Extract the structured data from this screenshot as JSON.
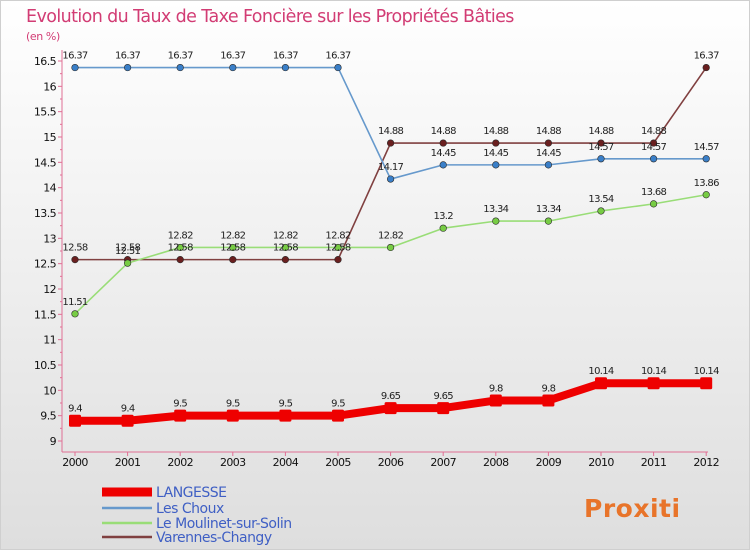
{
  "chart_data": {
    "type": "line",
    "title": "Evolution du Taux de Taxe Foncière sur les Propriétés Bâties",
    "unit_label": "(en %)",
    "brand": "Proxiti",
    "categories": [
      "2000",
      "2001",
      "2002",
      "2003",
      "2004",
      "2005",
      "2006",
      "2007",
      "2008",
      "2009",
      "2010",
      "2011",
      "2012"
    ],
    "ylim": [
      9,
      16.5
    ],
    "yticks": [
      9,
      9.5,
      10,
      10.5,
      11,
      11.5,
      12,
      12.5,
      13,
      13.5,
      14,
      14.5,
      15,
      15.5,
      16,
      16.5
    ],
    "ytick_labels": [
      "9",
      "9.5",
      "10",
      "10.5",
      "11",
      "11.5",
      "12",
      "12.5",
      "13",
      "13.5",
      "14",
      "14.5",
      "15",
      "15.5",
      "16",
      "16.5"
    ],
    "grid": false,
    "series": [
      {
        "name": "LANGESSE",
        "color": "#ee0000",
        "values": [
          9.4,
          9.4,
          9.5,
          9.5,
          9.5,
          9.5,
          9.65,
          9.65,
          9.8,
          9.8,
          10.14,
          10.14,
          10.14
        ],
        "labels": [
          "9.4",
          "9.4",
          "9.5",
          "9.5",
          "9.5",
          "9.5",
          "9.65",
          "9.65",
          "9.8",
          "9.8",
          "10.14",
          "10.14",
          "10.14"
        ]
      },
      {
        "name": "Les Choux",
        "color": "#6699cc",
        "marker_color": "#3a7fc8",
        "values": [
          16.37,
          16.37,
          16.37,
          16.37,
          16.37,
          16.37,
          14.17,
          14.45,
          14.45,
          14.45,
          14.57,
          14.57,
          14.57
        ],
        "labels": [
          "16.37",
          "16.37",
          "16.37",
          "16.37",
          "16.37",
          "16.37",
          "14.17",
          "14.45",
          "14.45",
          "14.45",
          "14.57",
          "14.57",
          "14.57"
        ]
      },
      {
        "name": "Le Moulinet-sur-Solin",
        "color": "#99dd77",
        "marker_color": "#77cc44",
        "values": [
          11.51,
          12.51,
          12.82,
          12.82,
          12.82,
          12.82,
          12.82,
          13.2,
          13.34,
          13.34,
          13.54,
          13.68,
          13.86
        ],
        "labels": [
          "11.51",
          "12.51",
          "12.82",
          "12.82",
          "12.82",
          "12.82",
          "12.82",
          "13.2",
          "13.34",
          "13.34",
          "13.54",
          "13.68",
          "13.86"
        ]
      },
      {
        "name": "Varennes-Changy",
        "color": "#804040",
        "marker_color": "#6a1f1f",
        "values": [
          12.58,
          12.58,
          12.58,
          12.58,
          12.58,
          12.58,
          14.88,
          14.88,
          14.88,
          14.88,
          14.88,
          14.88,
          16.37
        ],
        "labels": [
          "12.58",
          "12.58",
          "12.58",
          "12.58",
          "12.58",
          "12.58",
          "14.88",
          "14.88",
          "14.88",
          "14.88",
          "14.88",
          "14.88",
          "16.37"
        ]
      }
    ]
  }
}
